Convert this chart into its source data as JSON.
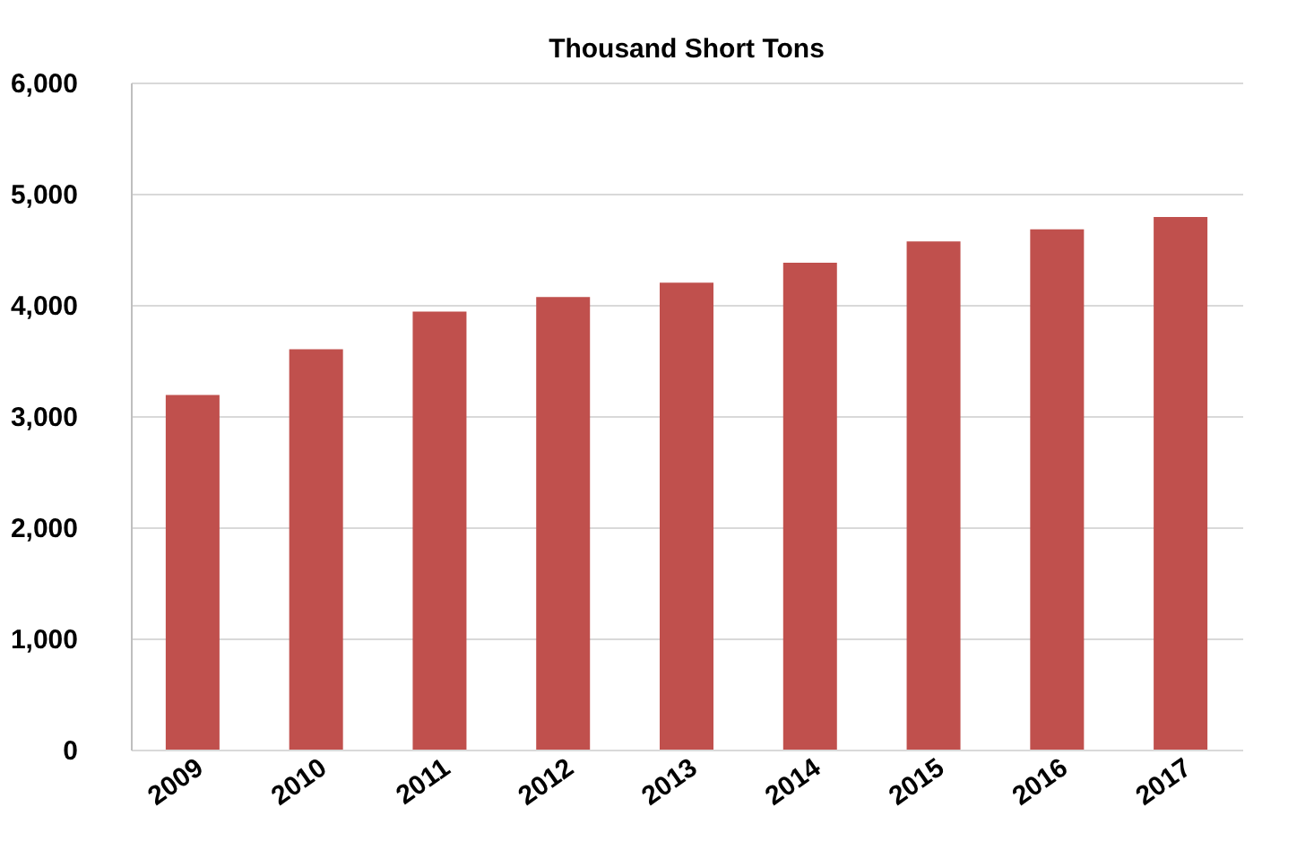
{
  "chart_data": {
    "type": "bar",
    "title": "Thousand Short Tons",
    "categories": [
      "2009",
      "2010",
      "2011",
      "2012",
      "2013",
      "2014",
      "2015",
      "2016",
      "2017"
    ],
    "values": [
      3190,
      3600,
      3940,
      4070,
      4200,
      4380,
      4570,
      4680,
      4790
    ],
    "color": "#c0504d",
    "ylim": [
      0,
      6000
    ],
    "yticks": [
      0,
      {
        "value": 1000,
        "label": "1,000"
      },
      {
        "value": 2000,
        "label": "2,000"
      },
      {
        "value": 3000,
        "label": "3,000"
      },
      {
        "value": 4000,
        "label": "4,000"
      },
      {
        "value": 5000,
        "label": "5,000"
      },
      {
        "value": 6000,
        "label": "6,000"
      }
    ],
    "grid": "y"
  }
}
